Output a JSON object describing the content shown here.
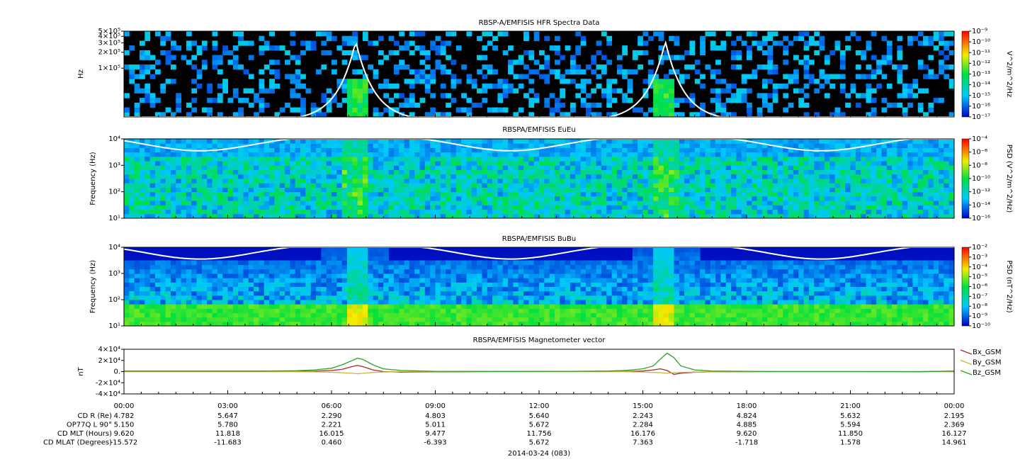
{
  "chart_data": [
    {
      "type": "spectrogram",
      "title": "RBSP-A/EMFISIS  HFR Spectra Data",
      "ylabel": "Hz",
      "log_scale": true,
      "ylim": [
        12000,
        500000
      ],
      "yticks": [
        {
          "value": 100000,
          "label": "1×10⁵"
        },
        {
          "value": 200000,
          "label": "2×10⁵"
        },
        {
          "value": 300000,
          "label": "3×10⁵"
        },
        {
          "value": 400000,
          "label": "4×10⁵"
        },
        {
          "value": 500000,
          "label": "5×10⁵"
        }
      ],
      "zlabel": "V^2/m^2/Hz",
      "zlim": [
        1e-17,
        1e-09
      ],
      "zticks": [
        {
          "value": 1e-09,
          "label": "10⁻⁹"
        },
        {
          "value": 1e-10,
          "label": "10⁻¹⁰"
        },
        {
          "value": 1e-11,
          "label": "10⁻¹¹"
        },
        {
          "value": 1e-12,
          "label": "10⁻¹²"
        },
        {
          "value": 1e-13,
          "label": "10⁻¹³"
        },
        {
          "value": 1e-14,
          "label": "10⁻¹⁴"
        },
        {
          "value": 1e-15,
          "label": "10⁻¹⁵"
        },
        {
          "value": 1e-16,
          "label": "10⁻¹⁶"
        },
        {
          "value": 1e-17,
          "label": "10⁻¹⁷"
        }
      ]
    },
    {
      "type": "spectrogram",
      "title": "RBSPA/EMFISIS  EuEu",
      "ylabel": "Frequency (Hz)",
      "log_scale": true,
      "ylim": [
        10,
        10000
      ],
      "yticks": [
        {
          "value": 10,
          "label": "10¹"
        },
        {
          "value": 100,
          "label": "10²"
        },
        {
          "value": 1000,
          "label": "10³"
        },
        {
          "value": 10000,
          "label": "10⁴"
        }
      ],
      "zlabel": "PSD (V^2/m^2/Hz)",
      "zlim": [
        1e-16,
        0.0001
      ],
      "zticks": [
        {
          "value": 0.0001,
          "label": "10⁻⁴"
        },
        {
          "value": 1e-06,
          "label": "10⁻⁶"
        },
        {
          "value": 1e-08,
          "label": "10⁻⁸"
        },
        {
          "value": 1e-10,
          "label": "10⁻¹⁰"
        },
        {
          "value": 1e-12,
          "label": "10⁻¹²"
        },
        {
          "value": 1e-14,
          "label": "10⁻¹⁴"
        },
        {
          "value": 1e-16,
          "label": "10⁻¹⁶"
        }
      ]
    },
    {
      "type": "spectrogram",
      "title": "RBSPA/EMFISIS  BuBu",
      "ylabel": "Frequency (Hz)",
      "log_scale": true,
      "ylim": [
        10,
        10000
      ],
      "yticks": [
        {
          "value": 10,
          "label": "10¹"
        },
        {
          "value": 100,
          "label": "10²"
        },
        {
          "value": 1000,
          "label": "10³"
        },
        {
          "value": 10000,
          "label": "10⁴"
        }
      ],
      "zlabel": "PSD (nT^2/Hz)",
      "zlim": [
        1e-10,
        0.01
      ],
      "zticks": [
        {
          "value": 0.01,
          "label": "10⁻²"
        },
        {
          "value": 0.001,
          "label": "10⁻³"
        },
        {
          "value": 0.0001,
          "label": "10⁻⁴"
        },
        {
          "value": 1e-05,
          "label": "10⁻⁵"
        },
        {
          "value": 1e-06,
          "label": "10⁻⁶"
        },
        {
          "value": 1e-07,
          "label": "10⁻⁷"
        },
        {
          "value": 1e-08,
          "label": "10⁻⁸"
        },
        {
          "value": 1e-09,
          "label": "10⁻⁹"
        },
        {
          "value": 1e-10,
          "label": "10⁻¹⁰"
        }
      ]
    },
    {
      "type": "line",
      "title": "RBSPA/EMFISIS  Magnetometer vector",
      "ylabel": "nT",
      "ylim": [
        -40000,
        40000
      ],
      "yticks": [
        {
          "value": 40000,
          "label": "4×10⁴"
        },
        {
          "value": 20000,
          "label": "2×10⁴"
        },
        {
          "value": 0,
          "label": "0."
        },
        {
          "value": -20000,
          "label": "-2×10⁴"
        },
        {
          "value": -40000,
          "label": "-4×10⁴"
        }
      ],
      "x": [
        0,
        2,
        4,
        5,
        5.5,
        6,
        6.3,
        6.6,
        6.75,
        6.9,
        7.2,
        7.5,
        8,
        9,
        11,
        13,
        14,
        14.5,
        15,
        15.3,
        15.5,
        15.7,
        15.9,
        16.1,
        16.5,
        17,
        19,
        21,
        23,
        24
      ],
      "series": [
        {
          "name": "Bx_GSM",
          "color": "#a52a2a",
          "values": [
            0,
            0,
            0,
            300,
            800,
            2000,
            4000,
            9000,
            11000,
            9000,
            3000,
            0,
            -1000,
            -500,
            0,
            0,
            0,
            300,
            1000,
            3000,
            5000,
            2000,
            -5000,
            -3000,
            -1000,
            -500,
            0,
            0,
            0,
            500
          ]
        },
        {
          "name": "By_GSM",
          "color": "#c8b43c",
          "values": [
            0,
            0,
            0,
            -200,
            -500,
            -1000,
            -2000,
            -3000,
            -4000,
            -3000,
            -1500,
            -800,
            -300,
            0,
            0,
            0,
            0,
            -300,
            -800,
            -1500,
            -2000,
            -3000,
            -2000,
            -1500,
            -800,
            -300,
            0,
            0,
            0,
            -500
          ]
        },
        {
          "name": "Bz_GSM",
          "color": "#2ca02c",
          "values": [
            1000,
            1000,
            1000,
            1500,
            3000,
            6000,
            12000,
            20000,
            24000,
            22000,
            12000,
            5000,
            2000,
            500,
            300,
            500,
            1000,
            2000,
            5000,
            10000,
            22000,
            33000,
            25000,
            10000,
            3000,
            1000,
            0,
            0,
            -300,
            1000
          ]
        }
      ]
    }
  ],
  "xaxis": {
    "xlim": [
      0,
      24
    ],
    "xticks": [
      {
        "value": 0,
        "label": "00:00"
      },
      {
        "value": 3,
        "label": "03:00"
      },
      {
        "value": 6,
        "label": "06:00"
      },
      {
        "value": 9,
        "label": "09:00"
      },
      {
        "value": 12,
        "label": "12:00"
      },
      {
        "value": 15,
        "label": "15:00"
      },
      {
        "value": 18,
        "label": "18:00"
      },
      {
        "value": 21,
        "label": "21:00"
      },
      {
        "value": 24,
        "label": "00:00"
      }
    ],
    "xlabel": "2014-03-24 (083)"
  },
  "ephemeris": [
    {
      "label": "CD R (Re)",
      "values": [
        "4.782",
        "5.647",
        "2.290",
        "4.803",
        "5.640",
        "2.243",
        "4.824",
        "5.632",
        "2.195"
      ]
    },
    {
      "label": "OP77Q L 90°",
      "values": [
        "5.150",
        "5.780",
        "2.221",
        "5.011",
        "5.672",
        "2.284",
        "4.885",
        "5.594",
        "2.369"
      ]
    },
    {
      "label": "CD MLT (Hours)",
      "values": [
        "9.620",
        "11.818",
        "16.015",
        "9.477",
        "11.756",
        "16.176",
        "9.620",
        "11.850",
        "16.127"
      ]
    },
    {
      "label": "CD MLAT (Degrees)",
      "values": [
        "-15.572",
        "-11.683",
        "0.460",
        "-6.393",
        "5.672",
        "7.363",
        "-1.718",
        "1.578",
        "14.961"
      ]
    }
  ]
}
